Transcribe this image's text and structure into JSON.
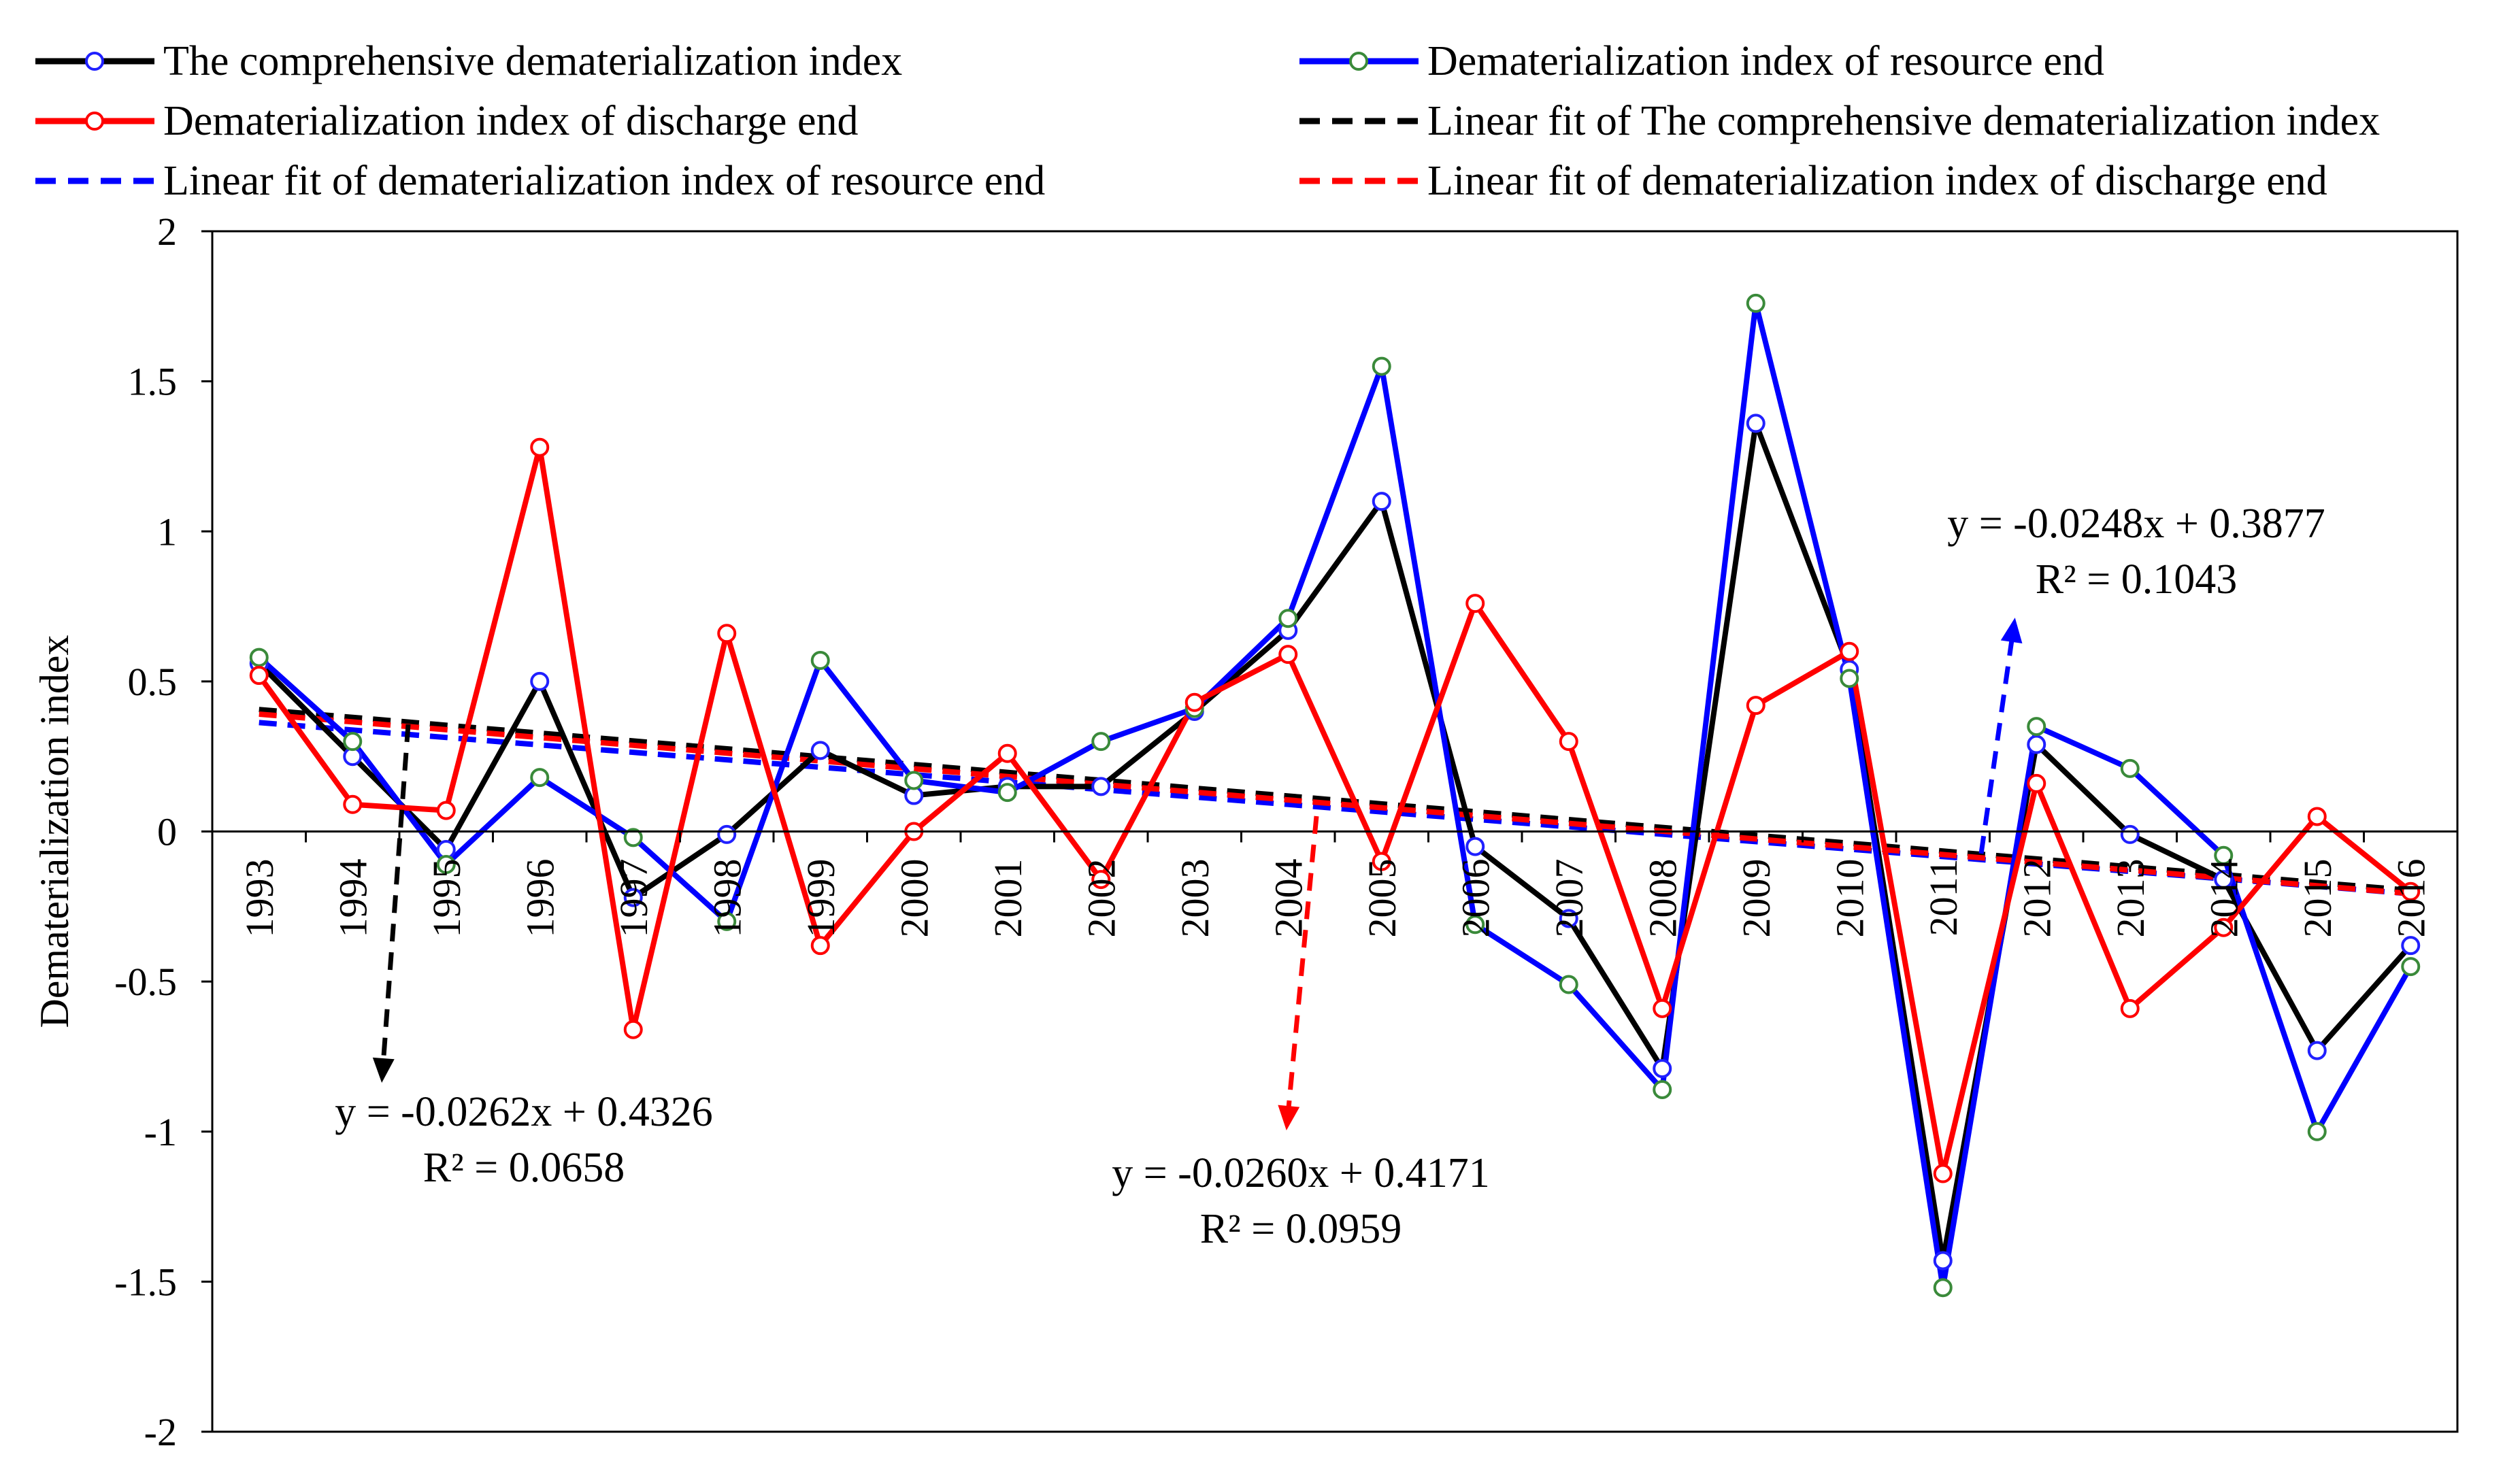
{
  "chart_data": {
    "type": "line",
    "title": "",
    "xlabel": "",
    "ylabel": "Dematerialization index",
    "ylim": [
      -2,
      2
    ],
    "yticks": [
      2,
      1.5,
      1,
      0.5,
      0,
      -0.5,
      -1,
      -1.5,
      -2
    ],
    "ytick_labels": [
      "2",
      "1.5",
      "1",
      "0.5",
      "0",
      "-0.5",
      "-1",
      "-1.5",
      "-2"
    ],
    "categories": [
      "1993",
      "1994",
      "1995",
      "1996",
      "1997",
      "1998",
      "1999",
      "2000",
      "2001",
      "2002",
      "2003",
      "2004",
      "2005",
      "2006",
      "2007",
      "2008",
      "2009",
      "2010",
      "2011",
      "2012",
      "2013",
      "2014",
      "2015",
      "2016"
    ],
    "legend_position": "top",
    "series": [
      {
        "name": "The comprehensive dematerialization index",
        "color": "#000000",
        "marker_color": "#2020ff",
        "values": [
          0.56,
          0.25,
          -0.06,
          0.5,
          -0.22,
          -0.01,
          0.27,
          0.12,
          0.15,
          0.15,
          0.4,
          0.67,
          1.1,
          -0.05,
          -0.29,
          -0.79,
          1.36,
          0.54,
          -1.43,
          0.29,
          -0.01,
          -0.16,
          -0.73,
          -0.38
        ]
      },
      {
        "name": "Dematerialization index of resource end",
        "color": "#0000ff",
        "marker_color": "#3a8a3a",
        "values": [
          0.58,
          0.3,
          -0.11,
          0.18,
          -0.02,
          -0.3,
          0.57,
          0.17,
          0.13,
          0.3,
          0.41,
          0.71,
          1.55,
          -0.31,
          -0.51,
          -0.86,
          1.76,
          0.51,
          -1.52,
          0.35,
          0.21,
          -0.08,
          -1.0,
          -0.45
        ]
      },
      {
        "name": "Dematerialization index of discharge end",
        "color": "#ff0000",
        "marker_color": "#ff0000",
        "values": [
          0.52,
          0.09,
          0.07,
          1.28,
          -0.66,
          0.66,
          -0.38,
          0.0,
          0.26,
          -0.16,
          0.43,
          0.59,
          -0.1,
          0.76,
          0.3,
          -0.59,
          0.42,
          0.6,
          -1.14,
          0.16,
          -0.59,
          -0.32,
          0.05,
          -0.2
        ]
      }
    ],
    "fits": [
      {
        "name": "Linear fit of The comprehensive dematerialization index",
        "color": "#000000",
        "slope": -0.0262,
        "intercept": 0.4326
      },
      {
        "name": "Linear fit of dematerialization index of resource end",
        "color": "#0000ff",
        "slope": -0.0248,
        "intercept": 0.3877
      },
      {
        "name": "Linear fit of dematerialization index of discharge end",
        "color": "#ff0000",
        "slope": -0.026,
        "intercept": 0.4171
      }
    ],
    "annotations": [
      {
        "color": "#000000",
        "equation": "y = -0.0262x + 0.4326",
        "r2": "R² = 0.0658"
      },
      {
        "color": "#ff0000",
        "equation": "y = -0.0260x + 0.4171",
        "r2": "R² = 0.0959"
      },
      {
        "color": "#0000ff",
        "equation": "y = -0.0248x + 0.3877",
        "r2": "R² = 0.1043"
      }
    ]
  }
}
